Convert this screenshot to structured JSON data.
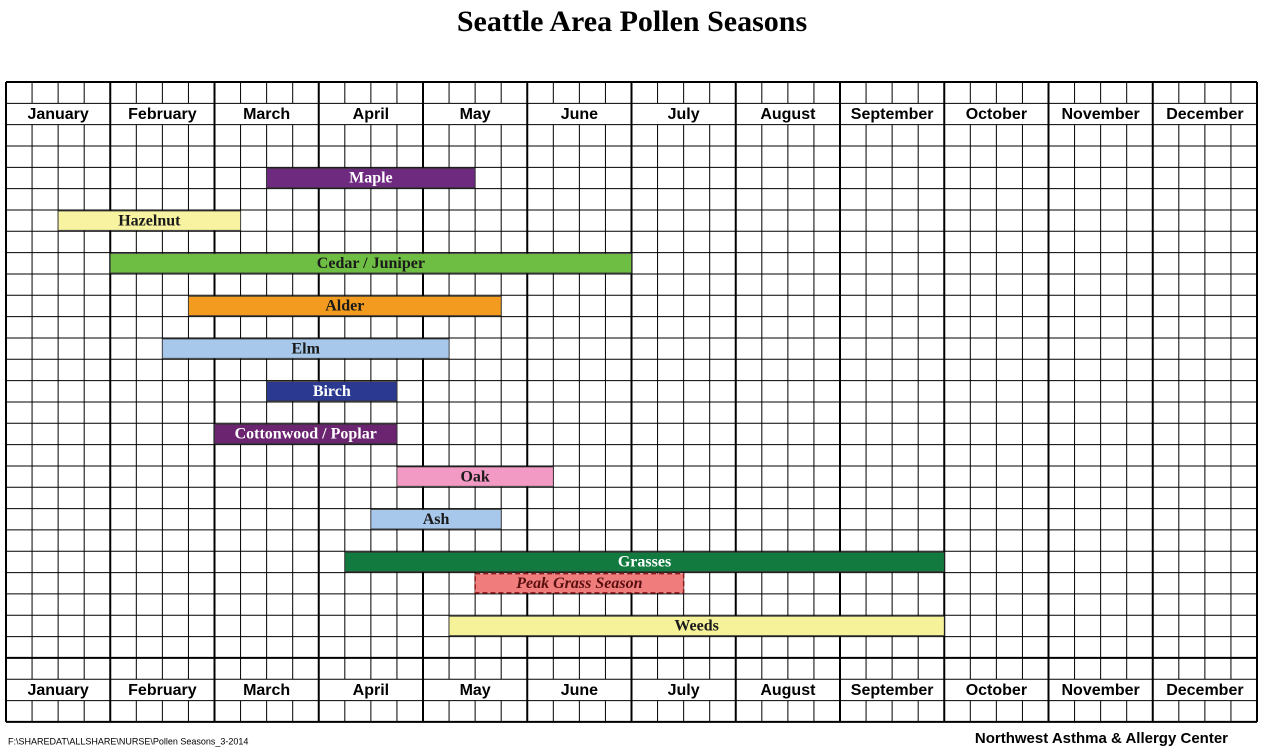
{
  "chart_data": {
    "type": "gantt",
    "title": "Seattle Area Pollen Seasons",
    "categories": [
      "January",
      "February",
      "March",
      "April",
      "May",
      "June",
      "July",
      "August",
      "September",
      "October",
      "November",
      "December"
    ],
    "xlim": [
      0,
      48
    ],
    "xticks": [
      0,
      1,
      2,
      3,
      4,
      5,
      6,
      7,
      8,
      9,
      10,
      11,
      12,
      13,
      14,
      15,
      16,
      17,
      18,
      19,
      20,
      21,
      22,
      23,
      24,
      25,
      26,
      27,
      28,
      29,
      30,
      31,
      32,
      33,
      34,
      35,
      36,
      37,
      38,
      39,
      40,
      41,
      42,
      43,
      44,
      45,
      46,
      47,
      48
    ],
    "grid": true,
    "series": [
      {
        "name": "Maple",
        "color": "#6e2a7e",
        "start": 10,
        "end": 18
      },
      {
        "name": "Hazelnut",
        "color": "#f7f3a0",
        "start": 2,
        "end": 9
      },
      {
        "name": "Cedar / Juniper",
        "color": "#6fbe44",
        "start": 4,
        "end": 24
      },
      {
        "name": "Alder",
        "color": "#f39b1f",
        "start": 7,
        "end": 19
      },
      {
        "name": "Elm",
        "color": "#a7c8ea",
        "start": 6,
        "end": 17
      },
      {
        "name": "Birch",
        "color": "#2b3990",
        "start": 10,
        "end": 15
      },
      {
        "name": "Cottonwood / Poplar",
        "color": "#6b2570",
        "start": 8,
        "end": 15
      },
      {
        "name": "Oak",
        "color": "#f39ac4",
        "start": 15,
        "end": 21
      },
      {
        "name": "Ash",
        "color": "#a7c8ea",
        "start": 14,
        "end": 19
      },
      {
        "name": "Grasses",
        "color": "#127a3e",
        "start": 13,
        "end": 36
      },
      {
        "name": "Peak Grass Season",
        "color": "#f07c7c",
        "start": 18,
        "end": 26,
        "style": "dashed"
      },
      {
        "name": "Weeds",
        "color": "#f5f29a",
        "start": 17,
        "end": 36
      }
    ],
    "footnote": "F:\\SHAREDAT\\ALLSHARE\\NURSE\\Pollen Seasons_3-2014",
    "source": "Northwest Asthma & Allergy Center"
  }
}
